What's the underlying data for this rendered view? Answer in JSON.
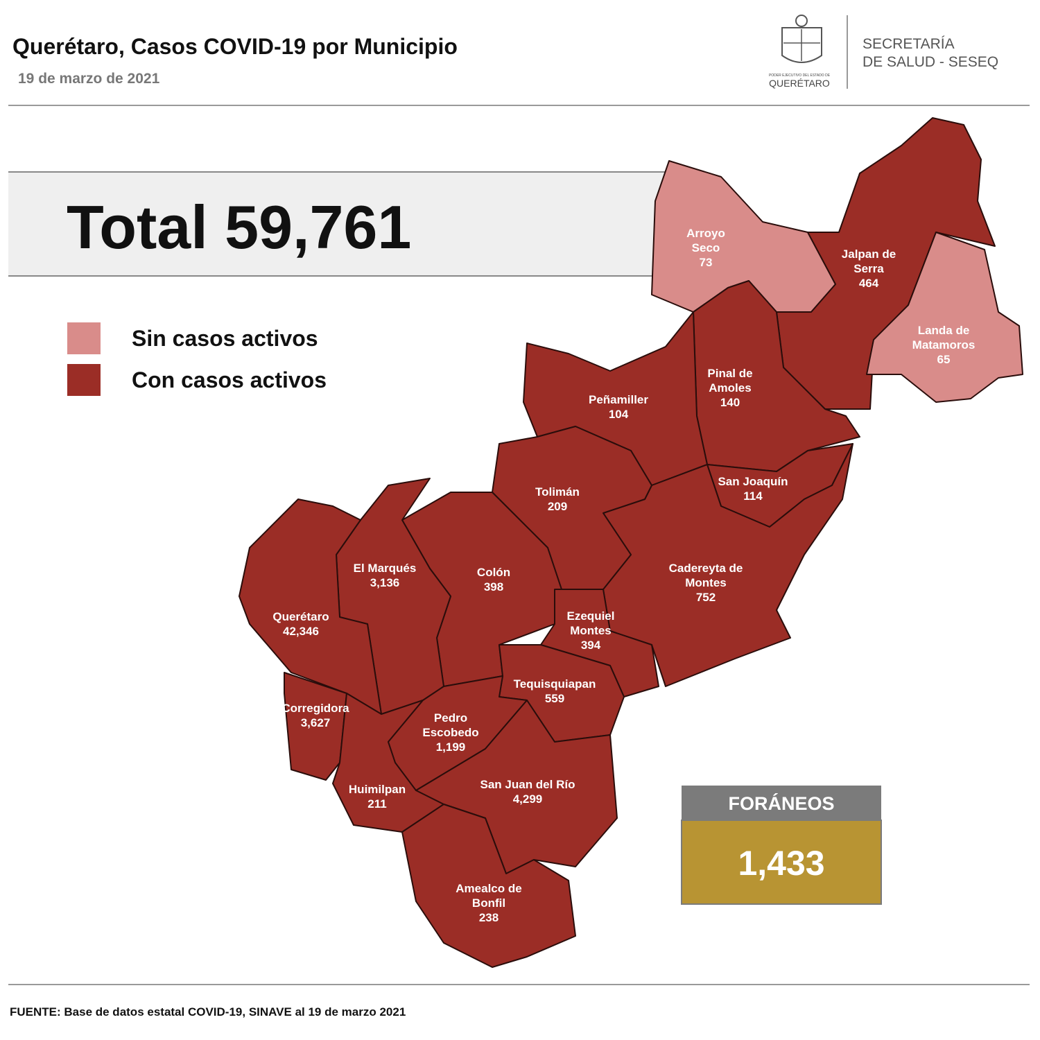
{
  "header": {
    "title": "Querétaro, Casos COVID-19 por Municipio",
    "date": "19 de marzo de 2021",
    "logo_small": "PODER EJECUTIVO DEL ESTADO DE",
    "logo_name": "QUERÉTARO",
    "agency_lines": [
      "SECRETARÍA",
      "DE SALUD - SESEQ"
    ]
  },
  "total": "Total 59,761",
  "legend": [
    {
      "label": "Sin casos activos",
      "color": "#d98c8a"
    },
    {
      "label": "Con casos activos",
      "color": "#9b2d26"
    }
  ],
  "municipios": [
    {
      "name_lines": [
        "Arroyo",
        "Seco"
      ],
      "cases": "73",
      "color": "#d98c8a"
    },
    {
      "name_lines": [
        "Jalpan de",
        "Serra"
      ],
      "cases": "464",
      "color": "#9b2d26"
    },
    {
      "name_lines": [
        "Landa de",
        "Matamoros"
      ],
      "cases": "65",
      "color": "#d98c8a"
    },
    {
      "name_lines": [
        "Pinal de",
        "Amoles"
      ],
      "cases": "140",
      "color": "#9b2d26"
    },
    {
      "name_lines": [
        "Peñamiller"
      ],
      "cases": "104",
      "color": "#9b2d26"
    },
    {
      "name_lines": [
        "San Joaquín"
      ],
      "cases": "114",
      "color": "#9b2d26"
    },
    {
      "name_lines": [
        "Cadereyta de",
        "Montes"
      ],
      "cases": "752",
      "color": "#9b2d26"
    },
    {
      "name_lines": [
        "Tolimán"
      ],
      "cases": "209",
      "color": "#9b2d26"
    },
    {
      "name_lines": [
        "Colón"
      ],
      "cases": "398",
      "color": "#9b2d26"
    },
    {
      "name_lines": [
        "El  Marqués"
      ],
      "cases": "3,136",
      "color": "#9b2d26"
    },
    {
      "name_lines": [
        "Querétaro"
      ],
      "cases": "42,346",
      "color": "#9b2d26"
    },
    {
      "name_lines": [
        "Corregidora"
      ],
      "cases": "3,627",
      "color": "#9b2d26"
    },
    {
      "name_lines": [
        "Huimilpan"
      ],
      "cases": "211",
      "color": "#9b2d26"
    },
    {
      "name_lines": [
        "Ezequiel",
        "Montes"
      ],
      "cases": "394",
      "color": "#9b2d26"
    },
    {
      "name_lines": [
        "Tequisquiapan"
      ],
      "cases": "559",
      "color": "#9b2d26"
    },
    {
      "name_lines": [
        "Pedro",
        "Escobedo"
      ],
      "cases": "1,199",
      "color": "#9b2d26"
    },
    {
      "name_lines": [
        "San Juan del Río"
      ],
      "cases": "4,299",
      "color": "#9b2d26"
    },
    {
      "name_lines": [
        "Amealco de",
        "Bonfil"
      ],
      "cases": "238",
      "color": "#9b2d26"
    }
  ],
  "foraneos": {
    "title": "FORÁNEOS",
    "value": "1,433"
  },
  "source": "FUENTE: Base de datos estatal COVID-19, SINAVE al 19 de marzo 2021"
}
